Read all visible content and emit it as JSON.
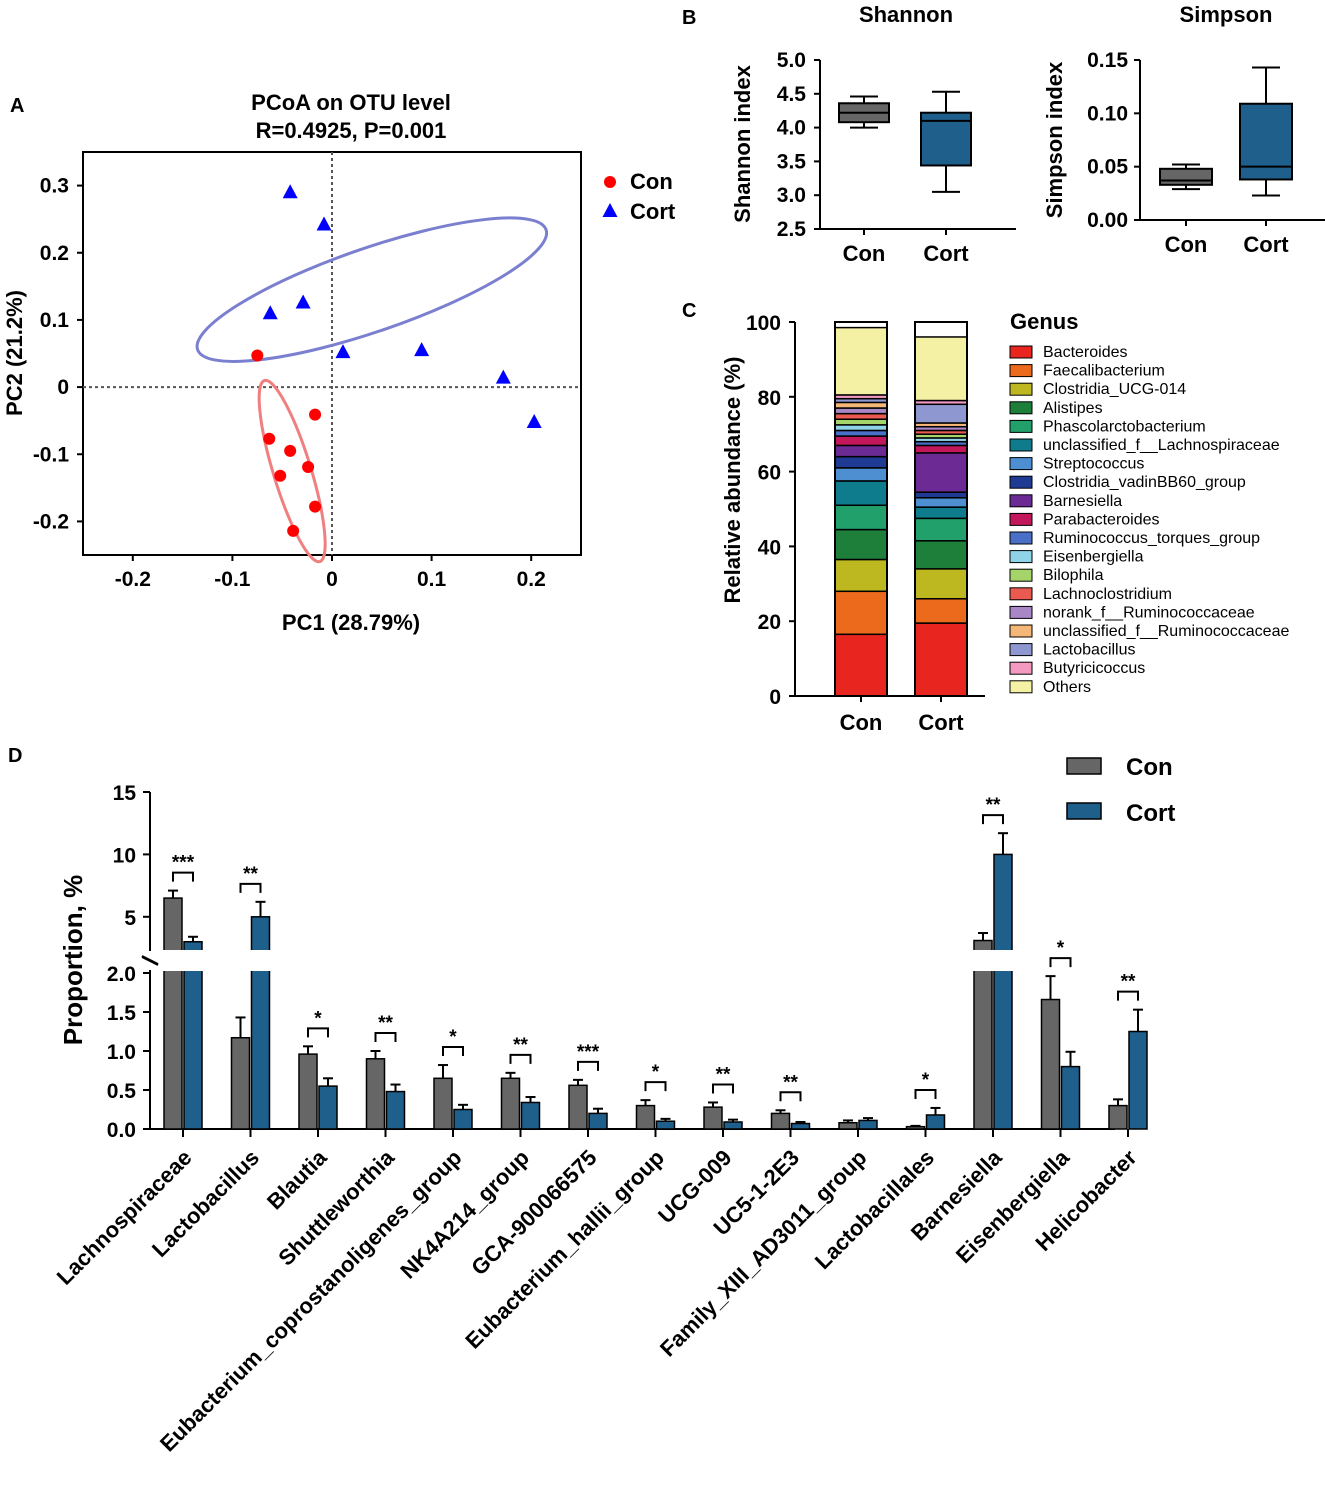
{
  "panel_labels": {
    "a": "A",
    "b": "B",
    "c": "C",
    "d": "D"
  },
  "colors": {
    "con": "#ff0000",
    "cort": "#0000ff",
    "con_box": "#666666",
    "cort_box": "#1e5f8c",
    "con_ellipse": "#f08080",
    "cort_ellipse": "#7b7fd0"
  },
  "chart_data": [
    {
      "id": "pcoa",
      "type": "scatter",
      "title": "PCoA on OTU level",
      "subtitle": "R=0.4925, P=0.001",
      "xlabel": "PC1 (28.79%)",
      "ylabel": "PC2 (21.2%)",
      "xlim": [
        -0.25,
        0.25
      ],
      "ylim": [
        -0.25,
        0.35
      ],
      "xticks": [
        -0.2,
        -0.1,
        0,
        0.1,
        0.2
      ],
      "xtick_labels": [
        "-0.2",
        "-0.1",
        "0",
        "0.1",
        "0.2"
      ],
      "yticks": [
        0.3,
        0.2,
        0.1,
        0,
        -0.1,
        -0.2
      ],
      "ytick_labels": [
        "0.3",
        "0.2",
        "0.1",
        "0",
        "-0.1",
        "-0.2"
      ],
      "legend": [
        "Con",
        "Cort"
      ],
      "series": [
        {
          "name": "Con",
          "marker": "circle",
          "x": [
            -0.075,
            -0.017,
            -0.063,
            -0.042,
            -0.052,
            -0.024,
            -0.017,
            -0.039
          ],
          "y": [
            0.047,
            -0.041,
            -0.077,
            -0.095,
            -0.132,
            -0.119,
            -0.178,
            -0.214
          ]
        },
        {
          "name": "Cort",
          "marker": "triangle",
          "x": [
            -0.042,
            -0.008,
            -0.029,
            -0.062,
            0.011,
            0.09,
            0.172,
            0.203
          ],
          "y": [
            0.29,
            0.242,
            0.126,
            0.11,
            0.052,
            0.055,
            0.014,
            -0.052
          ]
        }
      ],
      "ellipses": [
        {
          "group": "Con",
          "cx": -0.04,
          "cy": -0.125,
          "rx": 0.095,
          "ry": 0.028,
          "angle": 73
        },
        {
          "group": "Cort",
          "cx": 0.04,
          "cy": 0.145,
          "rx": 0.185,
          "ry": 0.062,
          "angle": -19
        }
      ]
    },
    {
      "id": "shannon",
      "type": "box",
      "title": "Shannon",
      "ylabel": "Shannon index",
      "ylim": [
        2.5,
        5.0
      ],
      "yticks": [
        2.5,
        3.0,
        3.5,
        4.0,
        4.5,
        5.0
      ],
      "ytick_labels": [
        "2.5",
        "3.0",
        "3.5",
        "4.0",
        "4.5",
        "5.0"
      ],
      "categories": [
        "Con",
        "Cort"
      ],
      "boxes": [
        {
          "group": "Con",
          "min": 4.0,
          "q1": 4.08,
          "median": 4.22,
          "q3": 4.36,
          "max": 4.46
        },
        {
          "group": "Cort",
          "min": 3.05,
          "q1": 3.44,
          "median": 4.1,
          "q3": 4.22,
          "max": 4.53
        }
      ]
    },
    {
      "id": "simpson",
      "type": "box",
      "title": "Simpson",
      "ylabel": "Simpson index",
      "ylim": [
        0,
        0.15
      ],
      "yticks": [
        0,
        0.05,
        0.1,
        0.15
      ],
      "ytick_labels": [
        "0.00",
        "0.05",
        "0.10",
        "0.15"
      ],
      "categories": [
        "Con",
        "Cort"
      ],
      "boxes": [
        {
          "group": "Con",
          "min": 0.029,
          "q1": 0.033,
          "median": 0.037,
          "q3": 0.048,
          "max": 0.052
        },
        {
          "group": "Cort",
          "min": 0.023,
          "q1": 0.038,
          "median": 0.05,
          "q3": 0.109,
          "max": 0.143
        }
      ]
    },
    {
      "id": "genus",
      "type": "stacked_bar",
      "ylabel": "Relative abundance (%)",
      "ylim": [
        0,
        100
      ],
      "yticks": [
        0,
        20,
        40,
        60,
        80,
        100
      ],
      "ytick_labels": [
        "0",
        "20",
        "40",
        "60",
        "80",
        "100"
      ],
      "legend_title": "Genus",
      "categories": [
        "Con",
        "Cort"
      ],
      "series": [
        {
          "name": "Bacteroides",
          "color": "#e8251f",
          "values": [
            16.5,
            19.5
          ]
        },
        {
          "name": "Faecalibacterium",
          "color": "#ec6a1b",
          "values": [
            11.5,
            6.5
          ]
        },
        {
          "name": "Clostridia_UCG-014",
          "color": "#bdb81f",
          "values": [
            8.5,
            8.0
          ]
        },
        {
          "name": "Alistipes",
          "color": "#1e7f3b",
          "values": [
            8.0,
            7.5
          ]
        },
        {
          "name": "Phascolarctobacterium",
          "color": "#22a06b",
          "values": [
            6.5,
            6.0
          ]
        },
        {
          "name": "unclassified_f__Lachnospiraceae",
          "color": "#0e7c8c",
          "values": [
            6.5,
            3.0
          ]
        },
        {
          "name": "Streptococcus",
          "color": "#4d8fd0",
          "values": [
            3.5,
            2.5
          ]
        },
        {
          "name": "Clostridia_vadinBB60_group",
          "color": "#1f3a93",
          "values": [
            3.0,
            1.5
          ]
        },
        {
          "name": "Barnesiella",
          "color": "#6c2b94",
          "values": [
            3.0,
            10.5
          ]
        },
        {
          "name": "Parabacteroides",
          "color": "#c2185b",
          "values": [
            2.5,
            2.0
          ]
        },
        {
          "name": "Ruminococcus_torques_group",
          "color": "#4a6fc7",
          "values": [
            1.5,
            1.0
          ]
        },
        {
          "name": "Eisenbergiella",
          "color": "#8fd3e8",
          "values": [
            1.5,
            1.0
          ]
        },
        {
          "name": "Bilophila",
          "color": "#a5d46a",
          "values": [
            1.5,
            1.0
          ]
        },
        {
          "name": "Lachnoclostridium",
          "color": "#ea5a50",
          "values": [
            1.5,
            1.0
          ]
        },
        {
          "name": "norank_f__Ruminococcaceae",
          "color": "#a986c6",
          "values": [
            1.5,
            1.0
          ]
        },
        {
          "name": "unclassified_f__Ruminococcaceae",
          "color": "#f5b777",
          "values": [
            1.5,
            1.0
          ]
        },
        {
          "name": "Lactobacillus",
          "color": "#8f97d1",
          "values": [
            1.0,
            5.0
          ]
        },
        {
          "name": "Butyricicoccus",
          "color": "#f49ac1",
          "values": [
            1.0,
            1.0
          ]
        },
        {
          "name": "Others",
          "color": "#f4f1a5",
          "values": [
            18.0,
            17.0
          ]
        }
      ]
    },
    {
      "id": "proportion",
      "type": "bar",
      "ylabel": "Proportion, %",
      "ylim_lower": [
        0,
        2.0
      ],
      "ylim_upper": [
        2.5,
        15
      ],
      "yticks_lower": [
        0,
        0.5,
        1.0,
        1.5,
        2.0
      ],
      "ytick_labels_lower": [
        "0.0",
        "0.5",
        "1.0",
        "1.5",
        "2.0"
      ],
      "yticks_upper": [
        5,
        10,
        15
      ],
      "ytick_labels_upper": [
        "5",
        "10",
        "15"
      ],
      "legend": [
        "Con",
        "Cort"
      ],
      "categories": [
        "Lachnospiraceae",
        "Lactobacillus",
        "Blautia",
        "Shuttleworthia",
        "Eubacterium_coprostanoligenes_group",
        "NK4A214_group",
        "GCA-900066575",
        "Eubacterium_hallii_group",
        "UCG-009",
        "UC5-1-2E3",
        "Family_XIII_AD3011_group",
        "Lactobacillales",
        "Barnesiella",
        "Eisenbergiella",
        "Helicobacter"
      ],
      "series": [
        {
          "name": "Con",
          "values": [
            6.5,
            1.17,
            0.96,
            0.9,
            0.65,
            0.65,
            0.56,
            0.3,
            0.28,
            0.2,
            0.08,
            0.03,
            3.1,
            1.66,
            0.3
          ],
          "errors": [
            0.6,
            0.26,
            0.1,
            0.1,
            0.17,
            0.07,
            0.07,
            0.07,
            0.06,
            0.04,
            0.03,
            0.01,
            0.6,
            0.3,
            0.08
          ]
        },
        {
          "name": "Cort",
          "values": [
            3.0,
            5.0,
            0.55,
            0.48,
            0.25,
            0.34,
            0.2,
            0.1,
            0.09,
            0.07,
            0.11,
            0.18,
            10.0,
            0.8,
            1.25
          ],
          "errors": [
            0.4,
            1.2,
            0.1,
            0.09,
            0.06,
            0.07,
            0.06,
            0.03,
            0.03,
            0.02,
            0.03,
            0.09,
            1.7,
            0.19,
            0.28
          ]
        }
      ],
      "significance": [
        "***",
        "**",
        "*",
        "**",
        "*",
        "**",
        "***",
        "*",
        "**",
        "**",
        "",
        "*",
        "**",
        "*",
        "**"
      ]
    }
  ]
}
